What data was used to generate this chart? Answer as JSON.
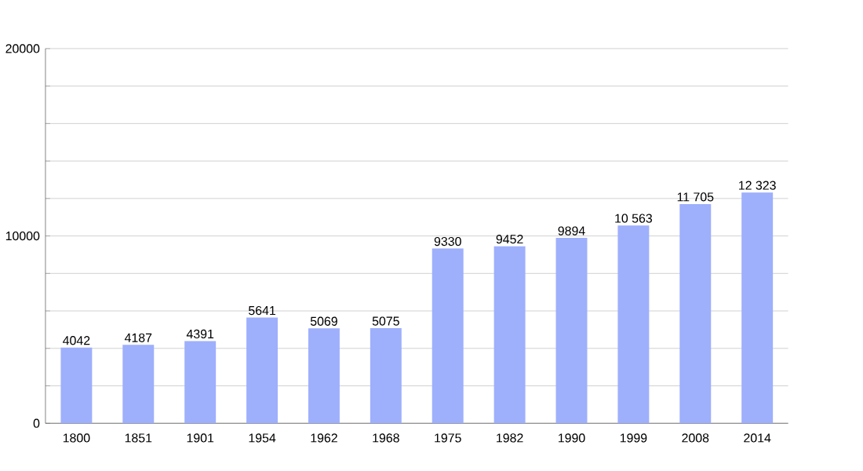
{
  "chart_data": {
    "type": "bar",
    "categories": [
      "1800",
      "1851",
      "1901",
      "1954",
      "1962",
      "1968",
      "1975",
      "1982",
      "1990",
      "1999",
      "2008",
      "2014"
    ],
    "values": [
      4042,
      4187,
      4391,
      5641,
      5069,
      5075,
      9330,
      9452,
      9894,
      10563,
      11705,
      12323
    ],
    "value_labels": [
      "4042",
      "4187",
      "4391",
      "5641",
      "5069",
      "5075",
      "9330",
      "9452",
      "9894",
      "10 563",
      "11 705",
      "12 323"
    ],
    "color": "#9eaffc",
    "ylim": [
      0,
      20000
    ],
    "yticks": [
      0,
      {
        "value": 2000,
        "label": null
      },
      {
        "value": 4000,
        "label": null
      },
      {
        "value": 6000,
        "label": null
      },
      {
        "value": 8000,
        "label": null
      },
      10000,
      {
        "value": 12000,
        "label": null
      },
      {
        "value": 14000,
        "label": null
      },
      {
        "value": 16000,
        "label": null
      },
      {
        "value": 18000,
        "label": null
      },
      20000
    ],
    "grid": true
  }
}
